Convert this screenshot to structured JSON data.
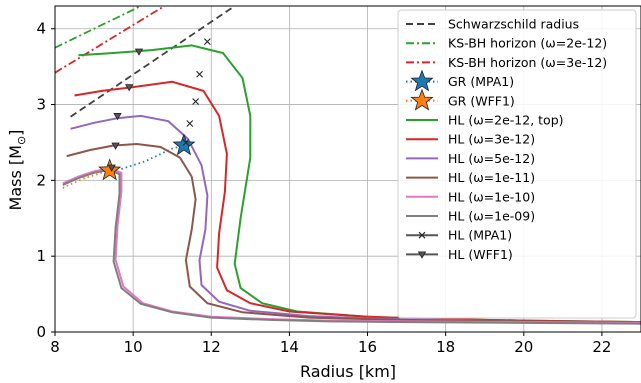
{
  "chart_data": {
    "type": "line",
    "xlabel": "Radius [km]",
    "ylabel": "Mass [M",
    "ylabel_sub": "⊙",
    "ylabel_tail": "]",
    "xlim": [
      8,
      23
    ],
    "ylim": [
      0,
      4.3
    ],
    "x_ticks": [
      8,
      10,
      12,
      14,
      16,
      18,
      20,
      22
    ],
    "y_ticks": [
      0,
      1,
      2,
      3,
      4
    ],
    "grid": true,
    "legend_position": "top-right",
    "series": [
      {
        "name": "Schwarzschild radius",
        "color": "#404040",
        "style": "dashed",
        "marker": "none",
        "x": [
          8.4,
          12.6
        ],
        "y": [
          2.84,
          4.3
        ]
      },
      {
        "name": "KS-BH horizon (ω=2e-12)",
        "color": "#2ca02c",
        "style": "dashdot",
        "marker": "none",
        "x": [
          8.0,
          10.2
        ],
        "y": [
          3.75,
          4.3
        ]
      },
      {
        "name": "KS-BH horizon (ω=3e-12)",
        "color": "#d62728",
        "style": "dashdot",
        "marker": "none",
        "x": [
          8.0,
          10.8
        ],
        "y": [
          3.42,
          4.3
        ]
      },
      {
        "name": "GR (MPA1)",
        "color": "#1f77b4",
        "style": "dotted",
        "marker": "star",
        "x": [
          9.7,
          10.3,
          11.0,
          11.3
        ],
        "y": [
          2.15,
          2.25,
          2.42,
          2.46
        ],
        "marker_point": [
          11.3,
          2.46
        ]
      },
      {
        "name": "GR (WFF1)",
        "color": "#ff7f0e",
        "style": "dotted",
        "marker": "star",
        "x": [
          8.2,
          8.7,
          9.2,
          9.4
        ],
        "y": [
          1.9,
          2.02,
          2.1,
          2.13
        ],
        "marker_point": [
          9.4,
          2.13
        ]
      },
      {
        "name": "HL (ω=2e-12, top)",
        "color": "#2ca02c",
        "style": "solid",
        "marker": "none",
        "x": [
          8.6,
          9.5,
          10.5,
          11.5,
          12.3,
          12.8,
          13.0,
          13.0,
          12.75,
          12.6,
          12.75,
          13.3,
          14.2,
          16,
          18,
          20,
          23
        ],
        "y": [
          3.65,
          3.68,
          3.72,
          3.78,
          3.68,
          3.35,
          2.85,
          2.3,
          1.5,
          0.9,
          0.58,
          0.38,
          0.27,
          0.2,
          0.17,
          0.15,
          0.13
        ]
      },
      {
        "name": "HL (ω=3e-12)",
        "color": "#d62728",
        "style": "solid",
        "marker": "none",
        "x": [
          8.5,
          9.2,
          10.0,
          11.0,
          11.8,
          12.2,
          12.4,
          12.35,
          12.2,
          12.15,
          12.4,
          13.0,
          14.0,
          16,
          18,
          20,
          23
        ],
        "y": [
          3.12,
          3.18,
          3.23,
          3.3,
          3.18,
          2.85,
          2.35,
          1.85,
          1.3,
          0.85,
          0.55,
          0.38,
          0.27,
          0.2,
          0.17,
          0.15,
          0.13
        ]
      },
      {
        "name": "HL (ω=5e-12)",
        "color": "#9467bd",
        "style": "solid",
        "marker": "none",
        "x": [
          8.4,
          9.0,
          9.6,
          10.2,
          10.9,
          11.4,
          11.75,
          11.9,
          11.85,
          11.7,
          11.75,
          12.2,
          13.0,
          14.5,
          16,
          18,
          20,
          23
        ],
        "y": [
          2.68,
          2.76,
          2.82,
          2.85,
          2.78,
          2.55,
          2.2,
          1.8,
          1.35,
          0.95,
          0.62,
          0.4,
          0.28,
          0.21,
          0.18,
          0.16,
          0.14,
          0.13
        ]
      },
      {
        "name": "HL (ω=1e-11)",
        "color": "#8c564b",
        "style": "solid",
        "marker": "none",
        "x": [
          8.3,
          8.9,
          9.5,
          10.1,
          10.7,
          11.2,
          11.5,
          11.6,
          11.5,
          11.35,
          11.45,
          11.9,
          12.8,
          14.5,
          16,
          18,
          20,
          23
        ],
        "y": [
          2.32,
          2.4,
          2.46,
          2.48,
          2.44,
          2.3,
          2.05,
          1.75,
          1.35,
          0.95,
          0.6,
          0.38,
          0.26,
          0.19,
          0.17,
          0.15,
          0.14,
          0.13
        ]
      },
      {
        "name": "HL (ω=1e-10)",
        "color": "#e377c2",
        "style": "solid",
        "marker": "none",
        "x": [
          8.2,
          8.6,
          9.0,
          9.4,
          9.7,
          9.7,
          9.6,
          9.55,
          9.75,
          10.25,
          11.0,
          12.0,
          13.5,
          15,
          17,
          20,
          23
        ],
        "y": [
          1.96,
          2.05,
          2.12,
          2.16,
          2.1,
          1.85,
          1.4,
          0.95,
          0.6,
          0.38,
          0.27,
          0.2,
          0.17,
          0.15,
          0.14,
          0.13,
          0.12
        ]
      },
      {
        "name": "HL (ω=1e-09)",
        "color": "#7f7f7f",
        "style": "solid",
        "marker": "none",
        "x": [
          8.2,
          8.6,
          9.0,
          9.4,
          9.65,
          9.65,
          9.55,
          9.5,
          9.7,
          10.2,
          11.0,
          12.0,
          13.5,
          15,
          17,
          20,
          23
        ],
        "y": [
          1.94,
          2.03,
          2.1,
          2.14,
          2.08,
          1.82,
          1.38,
          0.93,
          0.58,
          0.37,
          0.26,
          0.19,
          0.16,
          0.14,
          0.13,
          0.12,
          0.11
        ]
      },
      {
        "name": "HL (MPA1)",
        "color": "#555555",
        "style": "solid",
        "marker": "x",
        "x": [
          11.9,
          11.7,
          11.6,
          11.45,
          11.35
        ],
        "y": [
          3.83,
          3.4,
          3.04,
          2.75,
          2.5
        ]
      },
      {
        "name": "HL (WFF1)",
        "color": "#555555",
        "style": "solid",
        "marker": "triangle",
        "x": [
          10.15,
          9.9,
          9.6,
          9.55,
          9.45
        ],
        "y": [
          3.7,
          3.23,
          2.85,
          2.46,
          2.17
        ]
      }
    ]
  }
}
